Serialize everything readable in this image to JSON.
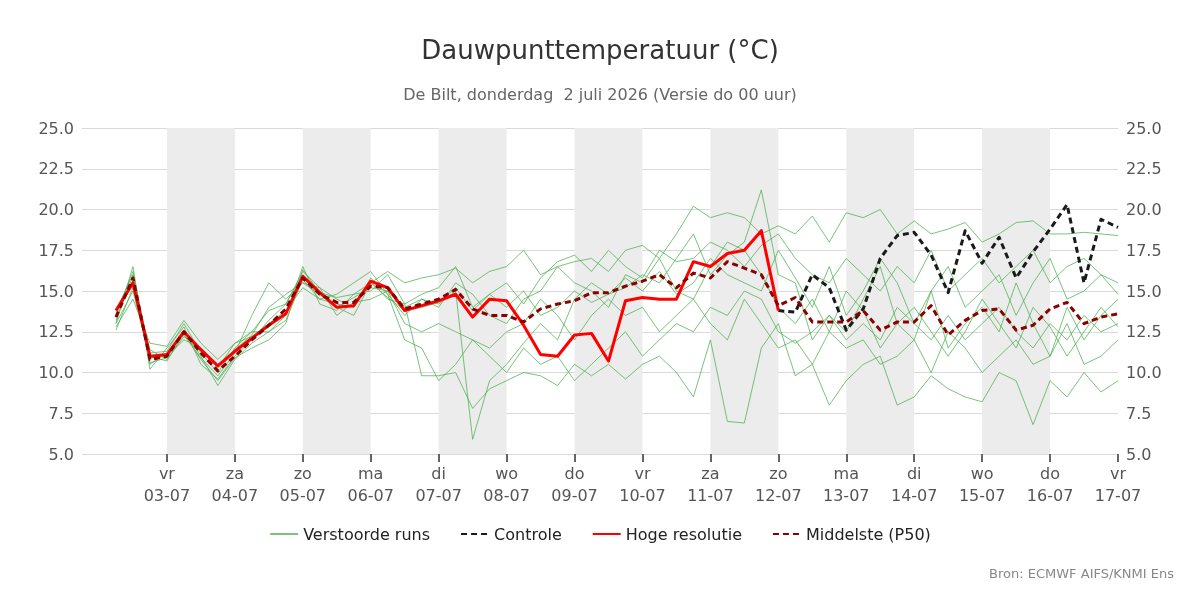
{
  "chart_data": {
    "type": "line",
    "title": "Dauwpunttemperatuur (°C)",
    "subtitle": "De Bilt, donderdag  2 juli 2026 (Versie do 00 uur)",
    "annotations": [
      "Bron: ECMWF AIFS/KNMI Ens"
    ],
    "x": [
      "2026-07-02T06:00",
      "2026-07-02T12:00",
      "2026-07-02T18:00",
      "2026-07-03T00:00",
      "2026-07-03T06:00",
      "2026-07-03T12:00",
      "2026-07-03T18:00",
      "2026-07-04T00:00",
      "2026-07-04T06:00",
      "2026-07-04T12:00",
      "2026-07-04T18:00",
      "2026-07-05T00:00",
      "2026-07-05T06:00",
      "2026-07-05T12:00",
      "2026-07-05T18:00",
      "2026-07-06T00:00",
      "2026-07-06T06:00",
      "2026-07-06T12:00",
      "2026-07-06T18:00",
      "2026-07-07T00:00",
      "2026-07-07T06:00",
      "2026-07-07T12:00",
      "2026-07-07T18:00",
      "2026-07-08T00:00",
      "2026-07-08T06:00",
      "2026-07-08T12:00",
      "2026-07-08T18:00",
      "2026-07-09T00:00",
      "2026-07-09T06:00",
      "2026-07-09T12:00",
      "2026-07-09T18:00",
      "2026-07-10T00:00",
      "2026-07-10T06:00",
      "2026-07-10T12:00",
      "2026-07-10T18:00",
      "2026-07-11T00:00",
      "2026-07-11T06:00",
      "2026-07-11T12:00",
      "2026-07-11T18:00",
      "2026-07-12T00:00",
      "2026-07-12T06:00",
      "2026-07-12T12:00",
      "2026-07-12T18:00",
      "2026-07-13T00:00",
      "2026-07-13T06:00",
      "2026-07-13T12:00",
      "2026-07-13T18:00",
      "2026-07-14T00:00",
      "2026-07-14T06:00",
      "2026-07-14T12:00",
      "2026-07-14T18:00",
      "2026-07-15T00:00",
      "2026-07-15T06:00",
      "2026-07-15T12:00",
      "2026-07-15T18:00",
      "2026-07-16T00:00",
      "2026-07-16T06:00",
      "2026-07-16T12:00",
      "2026-07-16T18:00",
      "2026-07-17T00:00"
    ],
    "series": [
      {
        "name": "Verstoorde runs",
        "color": "#4caf50",
        "values": [
          13.0,
          16.5,
          10.2,
          11.5,
          12.8,
          10.5,
          9.6,
          11.0,
          12.0,
          13.2,
          14.2,
          16.2,
          15.2,
          14.5,
          14.0,
          15.8,
          14.8,
          13.5,
          14.5,
          14.2,
          15.0,
          5.9,
          9.5,
          10.5,
          11.8,
          13.0,
          12.0,
          14.5,
          15.5,
          14.8,
          15.2,
          16.0,
          15.5,
          17.0,
          18.5,
          16.0,
          17.2,
          18.0,
          21.2,
          16.0,
          15.5,
          12.0,
          13.5,
          12.5,
          14.5,
          16.5,
          13.0,
          12.0,
          15.0,
          11.5,
          13.0,
          14.0,
          12.5,
          15.5,
          13.0,
          11.0,
          14.0,
          12.0,
          13.5,
          14.5
        ]
      },
      {
        "color": "#4caf50",
        "values": [
          12.6,
          15.2,
          11.4,
          10.8,
          12.2,
          11.5,
          10.3,
          11.8,
          12.5,
          12.5,
          13.5,
          16.5,
          14.2,
          13.8,
          14.8,
          15.0,
          16.0,
          14.2,
          9.8,
          9.8,
          10.0,
          7.8,
          9.0,
          9.5,
          10.0,
          9.8,
          9.2,
          10.5,
          9.8,
          10.5,
          9.6,
          10.5,
          11.0,
          10.0,
          8.5,
          12.0,
          7.0,
          6.9,
          11.5,
          13.0,
          9.8,
          10.5,
          8.0,
          9.5,
          10.5,
          11.0,
          8.0,
          8.5,
          9.8,
          9.0,
          8.5,
          8.2,
          10.0,
          9.5,
          6.8,
          9.5,
          8.5,
          10.0,
          8.8,
          9.5
        ]
      },
      {
        "color": "#4caf50",
        "values": [
          13.8,
          16.0,
          11.2,
          11.3,
          13.0,
          11.2,
          10.0,
          11.5,
          12.5,
          13.8,
          14.2,
          16.0,
          15.0,
          14.0,
          13.5,
          15.5,
          16.2,
          15.5,
          15.8,
          16.0,
          16.4,
          15.5,
          16.2,
          16.5,
          17.5,
          16.0,
          16.5,
          16.8,
          17.0,
          16.2,
          17.5,
          17.8,
          17.0,
          18.5,
          20.2,
          19.5,
          19.8,
          19.5,
          18.5,
          19.0,
          18.5,
          19.6,
          18.0,
          19.8,
          19.5,
          20.0,
          18.5,
          19.3,
          18.5,
          18.8,
          19.2,
          18.0,
          18.5,
          19.2,
          19.3,
          18.5,
          18.5,
          18.6,
          18.5,
          18.4
        ]
      },
      {
        "color": "#4caf50",
        "values": [
          13.5,
          15.6,
          10.5,
          11.2,
          12.3,
          10.9,
          9.8,
          11.2,
          13.5,
          15.5,
          14.5,
          15.5,
          14.8,
          14.0,
          14.6,
          15.2,
          15.0,
          14.0,
          14.5,
          14.0,
          15.5,
          14.8,
          13.5,
          13.0,
          14.5,
          15.0,
          16.5,
          15.5,
          15.0,
          14.0,
          16.0,
          15.5,
          17.0,
          15.0,
          14.5,
          16.5,
          18.0,
          17.5,
          16.0,
          14.0,
          13.0,
          14.5,
          12.5,
          15.0,
          13.8,
          11.5,
          13.0,
          14.0,
          12.5,
          11.0,
          12.5,
          14.5,
          13.0,
          11.5,
          14.0,
          12.8,
          11.0,
          12.5,
          14.0,
          12.8
        ]
      },
      {
        "color": "#4caf50",
        "values": [
          12.8,
          14.5,
          11.8,
          11.6,
          13.2,
          11.8,
          10.8,
          11.8,
          12.2,
          13.0,
          13.8,
          15.2,
          14.5,
          14.8,
          15.5,
          16.2,
          14.8,
          12.0,
          11.5,
          9.5,
          10.5,
          12.0,
          11.5,
          12.5,
          13.0,
          14.5,
          13.5,
          12.0,
          13.5,
          14.5,
          13.5,
          14.0,
          12.5,
          13.5,
          14.5,
          13.0,
          12.0,
          14.5,
          13.0,
          11.5,
          12.0,
          10.5,
          12.5,
          11.5,
          12.0,
          10.5,
          11.0,
          12.0,
          10.0,
          12.5,
          11.5,
          10.0,
          11.0,
          12.0,
          10.5,
          11.0,
          13.0,
          10.5,
          11.0,
          12.0
        ]
      },
      {
        "color": "#4caf50",
        "values": [
          13.2,
          15.9,
          10.6,
          10.9,
          12.6,
          11.0,
          9.2,
          10.8,
          11.8,
          12.5,
          13.2,
          15.7,
          14.5,
          14.2,
          14.0,
          15.6,
          14.5,
          14.2,
          14.8,
          15.2,
          16.5,
          14.0,
          14.8,
          15.5,
          14.2,
          15.8,
          16.8,
          17.2,
          16.2,
          17.5,
          16.5,
          15.8,
          17.5,
          16.8,
          17.0,
          18.0,
          17.5,
          16.5,
          17.8,
          18.5,
          17.0,
          16.0,
          15.5,
          17.0,
          16.0,
          15.0,
          16.5,
          15.5,
          17.5,
          15.0,
          16.0,
          17.0,
          15.5,
          16.5,
          17.5,
          15.5,
          16.5,
          17.0,
          16.0,
          15.5
        ]
      },
      {
        "color": "#4caf50",
        "values": [
          13.0,
          15.0,
          10.9,
          11.0,
          12.0,
          11.5,
          10.5,
          11.4,
          12.3,
          14.0,
          14.8,
          15.5,
          15.2,
          13.5,
          14.3,
          14.5,
          15.0,
          13.0,
          12.5,
          13.0,
          12.5,
          12.0,
          11.0,
          10.0,
          11.5,
          10.5,
          11.0,
          9.5,
          10.5,
          11.5,
          12.5,
          11.0,
          12.0,
          13.0,
          12.5,
          14.0,
          13.5,
          15.0,
          14.5,
          12.5,
          11.8,
          12.5,
          13.5,
          12.0,
          13.0,
          12.0,
          14.0,
          13.0,
          12.0,
          13.5,
          12.0,
          13.0,
          14.0,
          12.5,
          11.5,
          13.0,
          12.0,
          13.5,
          12.5,
          13.0
        ]
      },
      {
        "color": "#4caf50",
        "values": [
          13.6,
          16.2,
          11.0,
          10.7,
          12.4,
          10.8,
          9.5,
          10.9,
          11.5,
          12.0,
          13.0,
          16.3,
          14.9,
          14.6,
          14.8,
          15.5,
          14.6,
          13.8,
          14.0,
          14.3,
          15.2,
          13.8,
          14.8,
          14.0,
          15.0,
          13.5,
          14.0,
          15.0,
          14.3,
          14.8,
          15.8,
          15.0,
          16.2,
          14.8,
          15.5,
          17.0,
          16.0,
          15.5,
          15.0,
          17.5,
          15.8,
          14.0,
          16.5,
          13.5,
          15.0,
          17.0,
          15.5,
          13.0,
          15.0,
          16.5,
          14.0,
          15.0,
          16.0,
          13.5,
          15.5,
          17.0,
          14.5,
          15.0,
          16.0,
          14.8
        ]
      },
      {
        "name": "Controle",
        "color": "#1a1a1a",
        "line_style": "dashed",
        "values": [
          null,
          null,
          null,
          null,
          null,
          null,
          null,
          null,
          null,
          null,
          null,
          null,
          null,
          null,
          null,
          null,
          null,
          null,
          null,
          null,
          null,
          null,
          null,
          null,
          null,
          null,
          null,
          null,
          null,
          null,
          null,
          null,
          null,
          null,
          null,
          null,
          null,
          null,
          null,
          13.8,
          13.7,
          16.0,
          15.2,
          12.6,
          13.9,
          17.0,
          18.4,
          18.6,
          17.2,
          14.9,
          18.7,
          16.7,
          18.3,
          15.8,
          17.4,
          18.8,
          20.3,
          15.5,
          19.4,
          18.9
        ]
      },
      {
        "name": "Hoge resolutie",
        "color": "#ff0000",
        "values": [
          13.8,
          15.5,
          11.0,
          11.1,
          12.5,
          11.4,
          10.4,
          11.3,
          12.1,
          12.9,
          13.6,
          15.9,
          14.9,
          14.0,
          14.1,
          15.6,
          15.2,
          13.8,
          14.1,
          14.4,
          14.8,
          13.4,
          14.5,
          14.4,
          12.9,
          11.1,
          11.0,
          12.3,
          12.4,
          10.7,
          14.4,
          14.6,
          14.5,
          14.5,
          16.8,
          16.5,
          17.3,
          17.5,
          18.7,
          13.8,
          null,
          null,
          null,
          null,
          null,
          null,
          null,
          null,
          null,
          null,
          null,
          null,
          null,
          null,
          null,
          null,
          null,
          null,
          null,
          null
        ]
      },
      {
        "name": "Middelste (P50)",
        "color": "#8b0000",
        "line_style": "dashed",
        "values": [
          13.4,
          15.8,
          10.8,
          11.0,
          12.5,
          11.2,
          10.1,
          11.0,
          12.0,
          12.9,
          13.9,
          15.8,
          14.8,
          14.3,
          14.3,
          15.3,
          15.2,
          13.9,
          14.2,
          14.5,
          15.1,
          13.9,
          13.5,
          13.5,
          13.1,
          13.9,
          14.2,
          14.4,
          14.9,
          14.9,
          15.3,
          15.6,
          16.0,
          15.2,
          16.1,
          15.8,
          16.8,
          16.4,
          16.0,
          14.1,
          14.6,
          13.1,
          13.1,
          13.1,
          13.8,
          12.6,
          13.1,
          13.1,
          14.1,
          12.3,
          13.2,
          13.8,
          13.9,
          12.6,
          12.9,
          13.9,
          14.3,
          13.0,
          13.4,
          13.6
        ]
      }
    ],
    "xlim": [
      "2026-07-01T18:00",
      "2026-07-17T00:00"
    ],
    "xticks": [
      {
        "value": "2026-07-03",
        "label": "vr\n03-07"
      },
      {
        "value": "2026-07-04",
        "label": "za\n04-07"
      },
      {
        "value": "2026-07-05",
        "label": "zo\n05-07"
      },
      {
        "value": "2026-07-06",
        "label": "ma\n06-07"
      },
      {
        "value": "2026-07-07",
        "label": "di\n07-07"
      },
      {
        "value": "2026-07-08",
        "label": "wo\n08-07"
      },
      {
        "value": "2026-07-09",
        "label": "do\n09-07"
      },
      {
        "value": "2026-07-10",
        "label": "vr\n10-07"
      },
      {
        "value": "2026-07-11",
        "label": "za\n11-07"
      },
      {
        "value": "2026-07-12",
        "label": "zo\n12-07"
      },
      {
        "value": "2026-07-13",
        "label": "ma\n13-07"
      },
      {
        "value": "2026-07-14",
        "label": "di\n14-07"
      },
      {
        "value": "2026-07-15",
        "label": "wo\n15-07"
      },
      {
        "value": "2026-07-16",
        "label": "do\n16-07"
      },
      {
        "value": "2026-07-17",
        "label": "vr\n17-07"
      }
    ],
    "ylim": [
      5,
      25
    ],
    "yticks": [
      {
        "value": 5,
        "label": "5.0"
      },
      {
        "value": 7.5,
        "label": "7.5"
      },
      {
        "value": 10,
        "label": "10.0"
      },
      {
        "value": 12.5,
        "label": "12.5"
      },
      {
        "value": 15,
        "label": "15.0"
      },
      {
        "value": 17.5,
        "label": "17.5"
      },
      {
        "value": 20,
        "label": "20.0"
      },
      {
        "value": 22.5,
        "label": "22.5"
      },
      {
        "value": 25,
        "label": "25.0"
      }
    ],
    "y2lim": [
      5,
      25
    ],
    "y2ticks": [
      {
        "value": 5,
        "label": "5.0"
      },
      {
        "value": 7.5,
        "label": "7.5"
      },
      {
        "value": 10,
        "label": "10.0"
      },
      {
        "value": 12.5,
        "label": "12.5"
      },
      {
        "value": 15,
        "label": "15.0"
      },
      {
        "value": 17.5,
        "label": "17.5"
      },
      {
        "value": 20,
        "label": "20.0"
      },
      {
        "value": 22.5,
        "label": "22.5"
      },
      {
        "value": 25,
        "label": "25.0"
      }
    ],
    "bands": [
      {
        "axis": "x",
        "from": "2026-07-03",
        "to": "2026-07-04",
        "color": "#ececec"
      },
      {
        "axis": "x",
        "from": "2026-07-05",
        "to": "2026-07-06",
        "color": "#ececec"
      },
      {
        "axis": "x",
        "from": "2026-07-07",
        "to": "2026-07-08",
        "color": "#ececec"
      },
      {
        "axis": "x",
        "from": "2026-07-09",
        "to": "2026-07-10",
        "color": "#ececec"
      },
      {
        "axis": "x",
        "from": "2026-07-11",
        "to": "2026-07-12",
        "color": "#ececec"
      },
      {
        "axis": "x",
        "from": "2026-07-13",
        "to": "2026-07-14",
        "color": "#ececec"
      },
      {
        "axis": "x",
        "from": "2026-07-15",
        "to": "2026-07-16",
        "color": "#ececec"
      }
    ],
    "grid": "y",
    "legend": "bottom",
    "marker": "none"
  }
}
